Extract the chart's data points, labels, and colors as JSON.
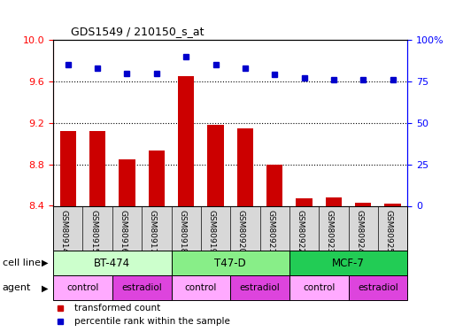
{
  "title": "GDS1549 / 210150_s_at",
  "samples": [
    "GSM80914",
    "GSM80915",
    "GSM80916",
    "GSM80917",
    "GSM80918",
    "GSM80919",
    "GSM80920",
    "GSM80921",
    "GSM80922",
    "GSM80923",
    "GSM80924",
    "GSM80925"
  ],
  "transformed_counts": [
    9.12,
    9.12,
    8.85,
    8.93,
    9.65,
    9.18,
    9.15,
    8.8,
    8.47,
    8.48,
    8.43,
    8.42
  ],
  "percentile_ranks": [
    85,
    83,
    80,
    80,
    90,
    85,
    83,
    79,
    77,
    76,
    76,
    76
  ],
  "bar_baseline": 8.4,
  "bar_color": "#cc0000",
  "dot_color": "#0000cc",
  "ylim_left": [
    8.4,
    10.0
  ],
  "ylim_right": [
    0,
    100
  ],
  "yticks_left": [
    8.4,
    8.8,
    9.2,
    9.6,
    10.0
  ],
  "yticks_right": [
    0,
    25,
    50,
    75,
    100
  ],
  "ytick_labels_right": [
    "0",
    "25",
    "50",
    "75",
    "100%"
  ],
  "cell_lines": [
    {
      "label": "BT-474",
      "start": 0,
      "end": 3,
      "color": "#ccffcc"
    },
    {
      "label": "T47-D",
      "start": 4,
      "end": 7,
      "color": "#88ee88"
    },
    {
      "label": "MCF-7",
      "start": 8,
      "end": 11,
      "color": "#22cc55"
    }
  ],
  "agents": [
    {
      "label": "control",
      "start": 0,
      "end": 1,
      "color": "#ffaaff"
    },
    {
      "label": "estradiol",
      "start": 2,
      "end": 3,
      "color": "#dd44dd"
    },
    {
      "label": "control",
      "start": 4,
      "end": 5,
      "color": "#ffaaff"
    },
    {
      "label": "estradiol",
      "start": 6,
      "end": 7,
      "color": "#dd44dd"
    },
    {
      "label": "control",
      "start": 8,
      "end": 9,
      "color": "#ffaaff"
    },
    {
      "label": "estradiol",
      "start": 10,
      "end": 11,
      "color": "#dd44dd"
    }
  ],
  "legend_items": [
    {
      "label": "transformed count",
      "color": "#cc0000"
    },
    {
      "label": "percentile rank within the sample",
      "color": "#0000cc"
    }
  ]
}
